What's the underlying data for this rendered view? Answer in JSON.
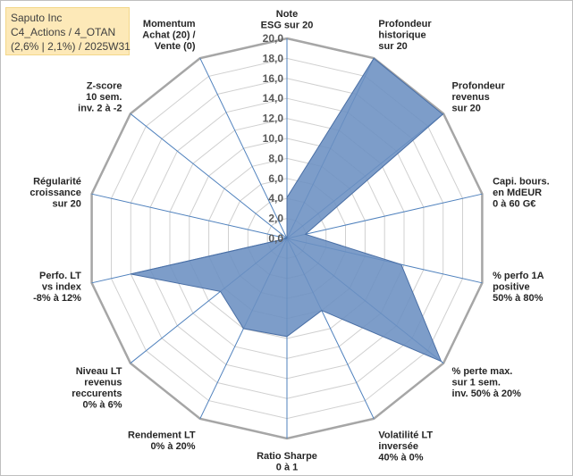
{
  "info_box": {
    "line1": "Saputo Inc",
    "line2": "C4_Actions / 4_OTAN",
    "line3": "(2,6% | 2,1%) / 2025W31"
  },
  "colors": {
    "fill": "#6b8fc2",
    "stroke": "#4a6fa5",
    "spokes": "#4f81bd",
    "grid": "#d0d0d0",
    "outer_ring": "#a6a6a6"
  },
  "chart_data": {
    "type": "radar",
    "rmin": 0,
    "rmax": 20,
    "ticks": [
      "0,0",
      "2,0",
      "4,0",
      "6,0",
      "8,0",
      "10,0",
      "12,0",
      "14,0",
      "16,0",
      "18,0",
      "20,0"
    ],
    "axes": [
      {
        "label": [
          "Note",
          "ESG sur 20"
        ],
        "value": 4.1
      },
      {
        "label": [
          "Profondeur",
          "historique",
          "sur 20"
        ],
        "value": 20
      },
      {
        "label": [
          "Profondeur",
          "revenus",
          "sur 20"
        ],
        "value": 19.9
      },
      {
        "label": [
          "Capi. bours.",
          "en MdEUR",
          "0 à 60 G€"
        ],
        "value": 1.9
      },
      {
        "label": [
          "% perfo 1A",
          "positive",
          "50% à 80%"
        ],
        "value": 11.7
      },
      {
        "label": [
          "% perte max.",
          "sur 1 sem.",
          "inv. 50% à 20%"
        ],
        "value": 19.7
      },
      {
        "label": [
          "Volatilité LT",
          "inversée",
          "40% à 0%"
        ],
        "value": 8.0
      },
      {
        "label": [
          "Ratio Sharpe",
          "0 à 1"
        ],
        "value": 9.8
      },
      {
        "label": [
          "Rendement LT",
          "0% à 20%"
        ],
        "value": 10.0
      },
      {
        "label": [
          "Niveau LT",
          "revenus",
          "reccurents",
          "0% à 6%"
        ],
        "value": 8.5
      },
      {
        "label": [
          "Perfo. LT",
          "vs index",
          "-8% à 12%"
        ],
        "value": 16.0
      },
      {
        "label": [
          "Régularité",
          "croissance",
          "sur 20"
        ],
        "value": 0
      },
      {
        "label": [
          "Z-score",
          "10 sem.",
          "inv. 2 à -2"
        ],
        "value": 0
      },
      {
        "label": [
          "Momentum",
          "Achat (20) /",
          "Vente (0)"
        ],
        "value": 0
      }
    ]
  }
}
